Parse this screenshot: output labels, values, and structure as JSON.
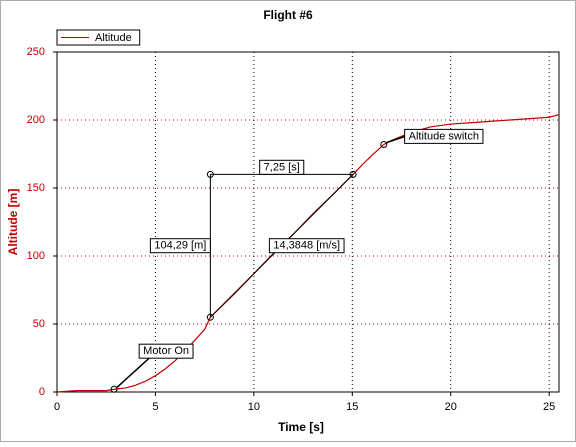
{
  "chart_data": {
    "type": "line",
    "title": "Flight #6",
    "x_label": "Time [s]",
    "y_label": "Altitude [m]",
    "x": [
      0,
      1,
      2,
      2.5,
      2.9,
      3.5,
      4,
      4.5,
      5,
      5.5,
      6,
      6.5,
      7,
      7.5,
      7.79,
      9,
      10,
      11,
      12,
      13,
      14,
      15.04,
      15.5,
      16,
      16.6,
      17,
      18,
      19,
      20,
      21,
      22,
      23,
      24,
      25,
      25.5
    ],
    "series": [
      {
        "name": "Altitude",
        "color": "#c00000",
        "values": [
          0,
          1,
          1,
          1,
          2,
          3,
          5,
          8,
          12,
          17,
          23,
          30,
          38,
          46,
          55,
          72,
          87,
          102,
          116,
          131,
          145,
          160,
          167,
          174,
          182,
          185,
          191,
          195,
          197,
          198,
          199,
          200,
          201,
          202,
          204
        ]
      }
    ],
    "xlim": [
      0,
      25.5
    ],
    "ylim": [
      0,
      250
    ],
    "xticks": [
      0,
      5,
      10,
      15,
      20,
      25
    ],
    "yticks": [
      0,
      50,
      100,
      150,
      200,
      250
    ],
    "grid": true,
    "markers": [
      {
        "label": "Motor On",
        "x": 2.9,
        "y": 2
      },
      {
        "label": "Altitude switch",
        "x": 16.6,
        "y": 182
      }
    ],
    "measure": {
      "x": [
        7.79,
        15.04
      ],
      "y": [
        55,
        160
      ],
      "dx_label": "7,25 [s]",
      "dy_label": "104,29 [m]",
      "slope_label": "14,3848 [m/s]"
    }
  }
}
